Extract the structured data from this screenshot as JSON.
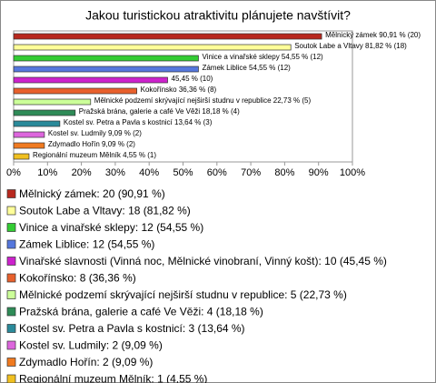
{
  "chart_data": {
    "type": "barh",
    "title": "Jakou turistickou atraktivitu plánujete navštívit?",
    "categories": [
      "Mělnický zámek: 20 (90,91 %)",
      "Soutok Labe a Vltavy: 18 (81,82 %)",
      "Vinice a vinařské sklepy: 12 (54,55 %)",
      "Zámek Liblice: 12 (54,55 %)",
      "Vinařské slavnosti (Vinná noc, Mělnické vinobraní, Vinný košt): 10 (45,45 %)",
      "Kokořínsko: 8 (36,36 %)",
      "Mělnické podzemí skrývající nejširší studnu v republice: 5 (22,73 %)",
      "Pražská brána, galerie a café Ve Věži: 4 (18,18 %)",
      "Kostel sv. Petra a Pavla s kostnicí: 3 (13,64 %)",
      "Kostel sv. Ludmily: 2 (9,09 %)",
      "Zdymadlo Hořín: 2 (9,09 %)",
      "Regionální muzeum Mělník: 1 (4,55 %)"
    ],
    "values": [
      90.91,
      81.82,
      54.55,
      54.55,
      45.45,
      36.36,
      22.73,
      18.18,
      13.64,
      9.09,
      9.09,
      4.55
    ],
    "value_labels": [
      "Mělnický zámek 90,91 % (20)",
      "Soutok Labe a Vltavy 81,82 % (18)",
      "Vinice a vinařské sklepy 54,55 % (12)",
      "Zámek Liblice 54,55 % (12)",
      "45,45 % (10)",
      "Kokořínsko 36,36 % (8)",
      "Mělnické podzemí skrývající nejširší studnu v republice 22,73 % (5)",
      "Pražská brána, galerie a café Ve Věži 18,18 % (4)",
      "Kostel sv. Petra a Pavla s kostnicí 13,64 % (3)",
      "Kostel sv. Ludmily 9,09 % (2)",
      "Zdymadlo Hořín 9,09 % (2)",
      "Regionální muzeum Mělník 4,55 % (1)"
    ],
    "colors": [
      "#b8281e",
      "#ffff99",
      "#33cc33",
      "#5577dd",
      "#cc22cc",
      "#e8602c",
      "#ccff99",
      "#2e8b57",
      "#2a8a9a",
      "#dd66dd",
      "#f07a20",
      "#f0c020"
    ],
    "xlim": [
      0,
      100
    ],
    "xticks": [
      {
        "value": 0,
        "label": "0%"
      },
      {
        "value": 10,
        "label": "10%"
      },
      {
        "value": 20,
        "label": "20%"
      },
      {
        "value": 30,
        "label": "30%"
      },
      {
        "value": 40,
        "label": "40%"
      },
      {
        "value": 50,
        "label": "50%"
      },
      {
        "value": 60,
        "label": "60%"
      },
      {
        "value": 70,
        "label": "70%"
      },
      {
        "value": 80,
        "label": "80%"
      },
      {
        "value": 90,
        "label": "90%"
      },
      {
        "value": 100,
        "label": "100%"
      }
    ],
    "grid": false
  }
}
